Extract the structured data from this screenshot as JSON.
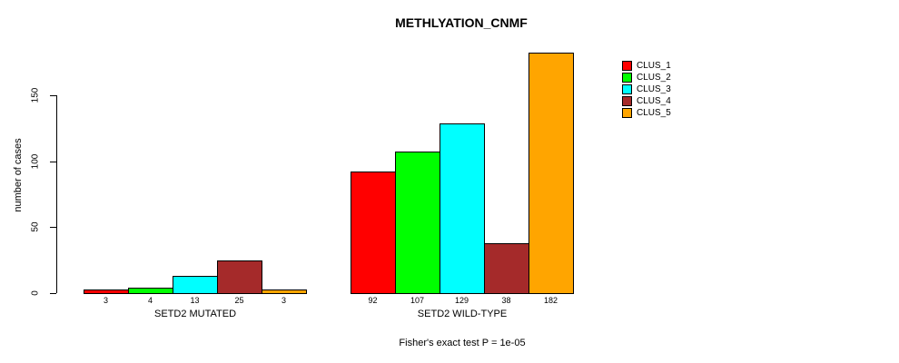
{
  "chart_data": {
    "type": "bar",
    "title": "METHLYATION_CNMF",
    "ylabel": "number of cases",
    "xlabel": "",
    "yticks": [
      0,
      50,
      100,
      150
    ],
    "ylim": [
      0,
      150
    ],
    "grid": false,
    "legend_position": "right",
    "groups": [
      {
        "label": "SETD2 MUTATED",
        "values": [
          3,
          4,
          13,
          25,
          3
        ]
      },
      {
        "label": "SETD2 WILD-TYPE",
        "values": [
          92,
          107,
          129,
          38,
          182
        ]
      }
    ],
    "clusters": [
      {
        "name": "CLUS_1",
        "color": "#FF0000"
      },
      {
        "name": "CLUS_2",
        "color": "#00FF00"
      },
      {
        "name": "CLUS_3",
        "color": "#00FFFF"
      },
      {
        "name": "CLUS_4",
        "color": "#A52A2A"
      },
      {
        "name": "CLUS_5",
        "color": "#FFA500"
      }
    ],
    "footnote": "Fisher's exact test P = 1e-05",
    "bar_border_color": "#000000",
    "axis_color": "#000000"
  }
}
